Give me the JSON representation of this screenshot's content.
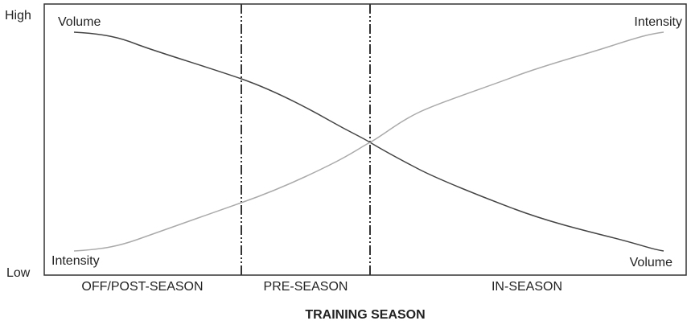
{
  "y_axis": {
    "high": "High",
    "low": "Low"
  },
  "curve_labels": {
    "volume_start": "Volume",
    "intensity_end": "Intensity",
    "intensity_start": "Intensity",
    "volume_end": "Volume"
  },
  "phases": [
    "OFF/POST-SEASON",
    "PRE-SEASON",
    "IN-SEASON"
  ],
  "x_axis_title": "TRAINING SEASON"
}
